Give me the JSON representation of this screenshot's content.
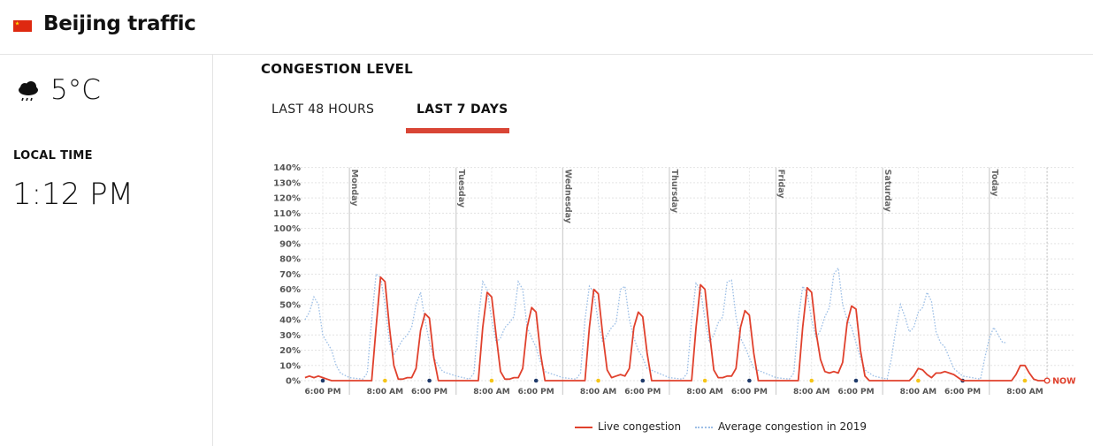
{
  "header": {
    "title": "Beijing traffic",
    "flag_icon": "china-flag-icon"
  },
  "weather": {
    "icon": "rain-cloud-icon",
    "temperature": "5°C"
  },
  "local_time": {
    "label": "LOCAL TIME",
    "value": "1:12 PM"
  },
  "congestion": {
    "title": "CONGESTION LEVEL",
    "tabs": [
      {
        "label": "LAST 48 HOURS",
        "active": false
      },
      {
        "label": "LAST 7 DAYS",
        "active": true
      }
    ]
  },
  "colors": {
    "live": "#e0412d",
    "average": "#9dbfe6",
    "tab_accent": "#d94535",
    "now": "#e0412d"
  },
  "chart_data": {
    "type": "line",
    "x_unit": "hours",
    "y_unit": "%",
    "ylim": [
      0,
      140
    ],
    "yticks": [
      "0%",
      "10%",
      "20%",
      "30%",
      "40%",
      "50%",
      "60%",
      "70%",
      "80%",
      "90%",
      "100%",
      "110%",
      "120%",
      "130%",
      "140%"
    ],
    "day_markers": [
      {
        "label": "Monday",
        "x": 6
      },
      {
        "label": "Tuesday",
        "x": 30
      },
      {
        "label": "Wednesday",
        "x": 54
      },
      {
        "label": "Thursday",
        "x": 78
      },
      {
        "label": "Friday",
        "x": 102
      },
      {
        "label": "Saturday",
        "x": 126
      },
      {
        "label": "Today",
        "x": 150
      }
    ],
    "x_ticks": [
      {
        "x": 0,
        "label": "6:00 PM",
        "dot": "#1f3a6b"
      },
      {
        "x": 14,
        "label": "8:00 AM",
        "dot": "#f5c518"
      },
      {
        "x": 24,
        "label": "6:00 PM",
        "dot": "#1f3a6b"
      },
      {
        "x": 38,
        "label": "8:00 AM",
        "dot": "#f5c518"
      },
      {
        "x": 48,
        "label": "6:00 PM",
        "dot": "#1f3a6b"
      },
      {
        "x": 62,
        "label": "8:00 AM",
        "dot": "#f5c518"
      },
      {
        "x": 72,
        "label": "6:00 PM",
        "dot": "#1f3a6b"
      },
      {
        "x": 86,
        "label": "8:00 AM",
        "dot": "#f5c518"
      },
      {
        "x": 96,
        "label": "6:00 PM",
        "dot": "#1f3a6b"
      },
      {
        "x": 110,
        "label": "8:00 AM",
        "dot": "#f5c518"
      },
      {
        "x": 120,
        "label": "6:00 PM",
        "dot": "#1f3a6b"
      },
      {
        "x": 134,
        "label": "8:00 AM",
        "dot": "#f5c518"
      },
      {
        "x": 144,
        "label": "6:00 PM",
        "dot": "#1f3a6b"
      },
      {
        "x": 158,
        "label": "8:00 AM",
        "dot": "#f5c518"
      }
    ],
    "now": {
      "x": 163,
      "label": "NOW"
    },
    "series": [
      {
        "name": "Live congestion",
        "style": "solid",
        "points": [
          [
            -4,
            2
          ],
          [
            -3,
            3
          ],
          [
            -2,
            2
          ],
          [
            -1,
            3
          ],
          [
            0,
            2
          ],
          [
            1,
            1
          ],
          [
            2,
            0
          ],
          [
            4,
            0
          ],
          [
            8,
            0
          ],
          [
            11,
            0
          ],
          [
            12,
            35
          ],
          [
            13,
            68
          ],
          [
            14,
            65
          ],
          [
            15,
            35
          ],
          [
            16,
            10
          ],
          [
            17,
            1
          ],
          [
            18,
            1
          ],
          [
            19,
            2
          ],
          [
            20,
            2
          ],
          [
            21,
            8
          ],
          [
            22,
            33
          ],
          [
            23,
            44
          ],
          [
            24,
            41
          ],
          [
            25,
            15
          ],
          [
            26,
            0
          ],
          [
            28,
            0
          ],
          [
            32,
            0
          ],
          [
            35,
            0
          ],
          [
            36,
            35
          ],
          [
            37,
            58
          ],
          [
            38,
            55
          ],
          [
            39,
            30
          ],
          [
            40,
            6
          ],
          [
            41,
            1
          ],
          [
            42,
            1
          ],
          [
            43,
            2
          ],
          [
            44,
            2
          ],
          [
            45,
            8
          ],
          [
            46,
            35
          ],
          [
            47,
            48
          ],
          [
            48,
            45
          ],
          [
            49,
            18
          ],
          [
            50,
            0
          ],
          [
            52,
            0
          ],
          [
            56,
            0
          ],
          [
            59,
            0
          ],
          [
            60,
            35
          ],
          [
            61,
            60
          ],
          [
            62,
            57
          ],
          [
            63,
            30
          ],
          [
            64,
            7
          ],
          [
            65,
            2
          ],
          [
            66,
            3
          ],
          [
            67,
            4
          ],
          [
            68,
            3
          ],
          [
            69,
            8
          ],
          [
            70,
            35
          ],
          [
            71,
            45
          ],
          [
            72,
            42
          ],
          [
            73,
            18
          ],
          [
            74,
            0
          ],
          [
            76,
            0
          ],
          [
            80,
            0
          ],
          [
            83,
            0
          ],
          [
            84,
            35
          ],
          [
            85,
            63
          ],
          [
            86,
            60
          ],
          [
            87,
            32
          ],
          [
            88,
            7
          ],
          [
            89,
            2
          ],
          [
            90,
            2
          ],
          [
            91,
            3
          ],
          [
            92,
            3
          ],
          [
            93,
            8
          ],
          [
            94,
            35
          ],
          [
            95,
            46
          ],
          [
            96,
            43
          ],
          [
            97,
            18
          ],
          [
            98,
            0
          ],
          [
            100,
            0
          ],
          [
            104,
            0
          ],
          [
            107,
            0
          ],
          [
            108,
            35
          ],
          [
            109,
            61
          ],
          [
            110,
            58
          ],
          [
            111,
            32
          ],
          [
            112,
            14
          ],
          [
            113,
            6
          ],
          [
            114,
            5
          ],
          [
            115,
            6
          ],
          [
            116,
            5
          ],
          [
            117,
            12
          ],
          [
            118,
            38
          ],
          [
            119,
            49
          ],
          [
            120,
            47
          ],
          [
            121,
            20
          ],
          [
            122,
            3
          ],
          [
            123,
            0
          ],
          [
            126,
            0
          ],
          [
            130,
            0
          ],
          [
            132,
            0
          ],
          [
            133,
            3
          ],
          [
            134,
            8
          ],
          [
            135,
            7
          ],
          [
            136,
            4
          ],
          [
            137,
            2
          ],
          [
            138,
            5
          ],
          [
            139,
            5
          ],
          [
            140,
            6
          ],
          [
            141,
            5
          ],
          [
            142,
            4
          ],
          [
            143,
            2
          ],
          [
            144,
            0
          ],
          [
            148,
            0
          ],
          [
            152,
            0
          ],
          [
            155,
            0
          ],
          [
            156,
            4
          ],
          [
            157,
            10
          ],
          [
            158,
            10
          ],
          [
            159,
            5
          ],
          [
            160,
            1
          ],
          [
            161,
            0
          ],
          [
            162,
            0
          ],
          [
            163,
            0
          ]
        ]
      },
      {
        "name": "Average congestion in 2019",
        "style": "dotted",
        "points": [
          [
            -4,
            40
          ],
          [
            -3,
            45
          ],
          [
            -2,
            55
          ],
          [
            -1,
            50
          ],
          [
            0,
            30
          ],
          [
            1,
            25
          ],
          [
            2,
            20
          ],
          [
            3,
            10
          ],
          [
            4,
            5
          ],
          [
            6,
            2
          ],
          [
            9,
            1
          ],
          [
            10,
            5
          ],
          [
            11,
            40
          ],
          [
            12,
            70
          ],
          [
            13,
            68
          ],
          [
            14,
            50
          ],
          [
            15,
            25
          ],
          [
            16,
            17
          ],
          [
            17,
            22
          ],
          [
            18,
            27
          ],
          [
            19,
            30
          ],
          [
            20,
            35
          ],
          [
            21,
            50
          ],
          [
            22,
            58
          ],
          [
            23,
            40
          ],
          [
            24,
            25
          ],
          [
            25,
            15
          ],
          [
            26,
            10
          ],
          [
            27,
            6
          ],
          [
            30,
            3
          ],
          [
            33,
            1
          ],
          [
            34,
            5
          ],
          [
            35,
            40
          ],
          [
            36,
            65
          ],
          [
            37,
            60
          ],
          [
            38,
            40
          ],
          [
            39,
            25
          ],
          [
            40,
            28
          ],
          [
            41,
            35
          ],
          [
            42,
            38
          ],
          [
            43,
            42
          ],
          [
            44,
            65
          ],
          [
            45,
            60
          ],
          [
            46,
            35
          ],
          [
            47,
            28
          ],
          [
            48,
            22
          ],
          [
            49,
            12
          ],
          [
            50,
            6
          ],
          [
            54,
            2
          ],
          [
            57,
            1
          ],
          [
            58,
            5
          ],
          [
            59,
            40
          ],
          [
            60,
            62
          ],
          [
            61,
            58
          ],
          [
            62,
            38
          ],
          [
            63,
            25
          ],
          [
            64,
            30
          ],
          [
            65,
            35
          ],
          [
            66,
            38
          ],
          [
            67,
            60
          ],
          [
            68,
            62
          ],
          [
            69,
            40
          ],
          [
            70,
            28
          ],
          [
            71,
            20
          ],
          [
            72,
            15
          ],
          [
            73,
            8
          ],
          [
            78,
            2
          ],
          [
            81,
            1
          ],
          [
            82,
            5
          ],
          [
            83,
            40
          ],
          [
            84,
            64
          ],
          [
            85,
            60
          ],
          [
            86,
            40
          ],
          [
            87,
            25
          ],
          [
            88,
            30
          ],
          [
            89,
            38
          ],
          [
            90,
            42
          ],
          [
            91,
            65
          ],
          [
            92,
            66
          ],
          [
            93,
            42
          ],
          [
            94,
            28
          ],
          [
            95,
            22
          ],
          [
            96,
            15
          ],
          [
            97,
            8
          ],
          [
            102,
            2
          ],
          [
            105,
            1
          ],
          [
            106,
            5
          ],
          [
            107,
            40
          ],
          [
            108,
            62
          ],
          [
            109,
            58
          ],
          [
            110,
            40
          ],
          [
            111,
            28
          ],
          [
            112,
            33
          ],
          [
            113,
            42
          ],
          [
            114,
            48
          ],
          [
            115,
            70
          ],
          [
            116,
            74
          ],
          [
            117,
            50
          ],
          [
            118,
            40
          ],
          [
            119,
            35
          ],
          [
            120,
            25
          ],
          [
            121,
            15
          ],
          [
            122,
            7
          ],
          [
            124,
            3
          ],
          [
            127,
            1
          ],
          [
            128,
            15
          ],
          [
            129,
            35
          ],
          [
            130,
            50
          ],
          [
            131,
            42
          ],
          [
            132,
            32
          ],
          [
            133,
            35
          ],
          [
            134,
            45
          ],
          [
            135,
            48
          ],
          [
            136,
            58
          ],
          [
            137,
            52
          ],
          [
            138,
            32
          ],
          [
            139,
            25
          ],
          [
            140,
            22
          ],
          [
            141,
            15
          ],
          [
            142,
            8
          ],
          [
            144,
            3
          ],
          [
            148,
            1
          ],
          [
            149,
            15
          ],
          [
            150,
            28
          ],
          [
            151,
            35
          ],
          [
            152,
            30
          ],
          [
            153,
            25
          ],
          [
            154,
            25
          ]
        ]
      }
    ]
  }
}
